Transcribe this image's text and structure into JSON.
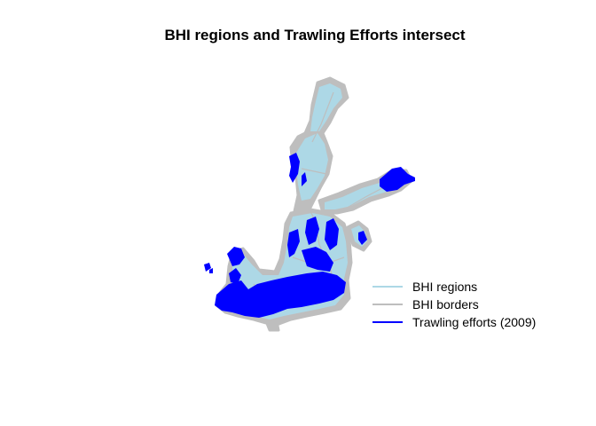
{
  "title": "BHI regions and Trawling Efforts intersect",
  "colors": {
    "regions_fill": "#add8e6",
    "borders": "#bebebe",
    "trawling": "#0000ff",
    "background": "#ffffff"
  },
  "legend": {
    "items": [
      {
        "label": "BHI regions",
        "color": "#add8e6"
      },
      {
        "label": "BHI borders",
        "color": "#bebebe"
      },
      {
        "label": "Trawling efforts (2009)",
        "color": "#0000ff"
      }
    ]
  }
}
